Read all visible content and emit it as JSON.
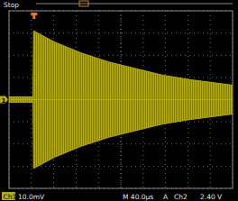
{
  "chart_data": {
    "type": "area",
    "annotations": [
      "Stop",
      "1",
      "Ch1",
      "10.0mV",
      "M 40.0µs",
      "A",
      "Ch2",
      "2.40 V"
    ],
    "x": [
      -44,
      -1,
      0,
      37,
      85,
      134,
      182,
      231,
      279,
      356
    ],
    "series": [
      {
        "color": "#b8b000",
        "values": [
          1.2,
          1.2,
          31,
          26,
          21,
          17,
          14,
          11,
          9,
          6.5
        ]
      },
      {
        "color": "#b8b000",
        "values": [
          -1.2,
          -1.2,
          -31,
          -26,
          -21,
          -17,
          -14,
          -11,
          -9,
          -6.5
        ]
      }
    ],
    "xlim": [
      -44,
      356
    ],
    "ylim": [
      -40,
      40
    ],
    "xticks": [
      -44,
      -4,
      36,
      76,
      116,
      156,
      196,
      236,
      276,
      316,
      356
    ],
    "yticks": [
      -40,
      -30,
      -20,
      -10,
      0,
      10,
      20,
      30,
      40
    ],
    "grid": true,
    "tick_labels": false
  }
}
